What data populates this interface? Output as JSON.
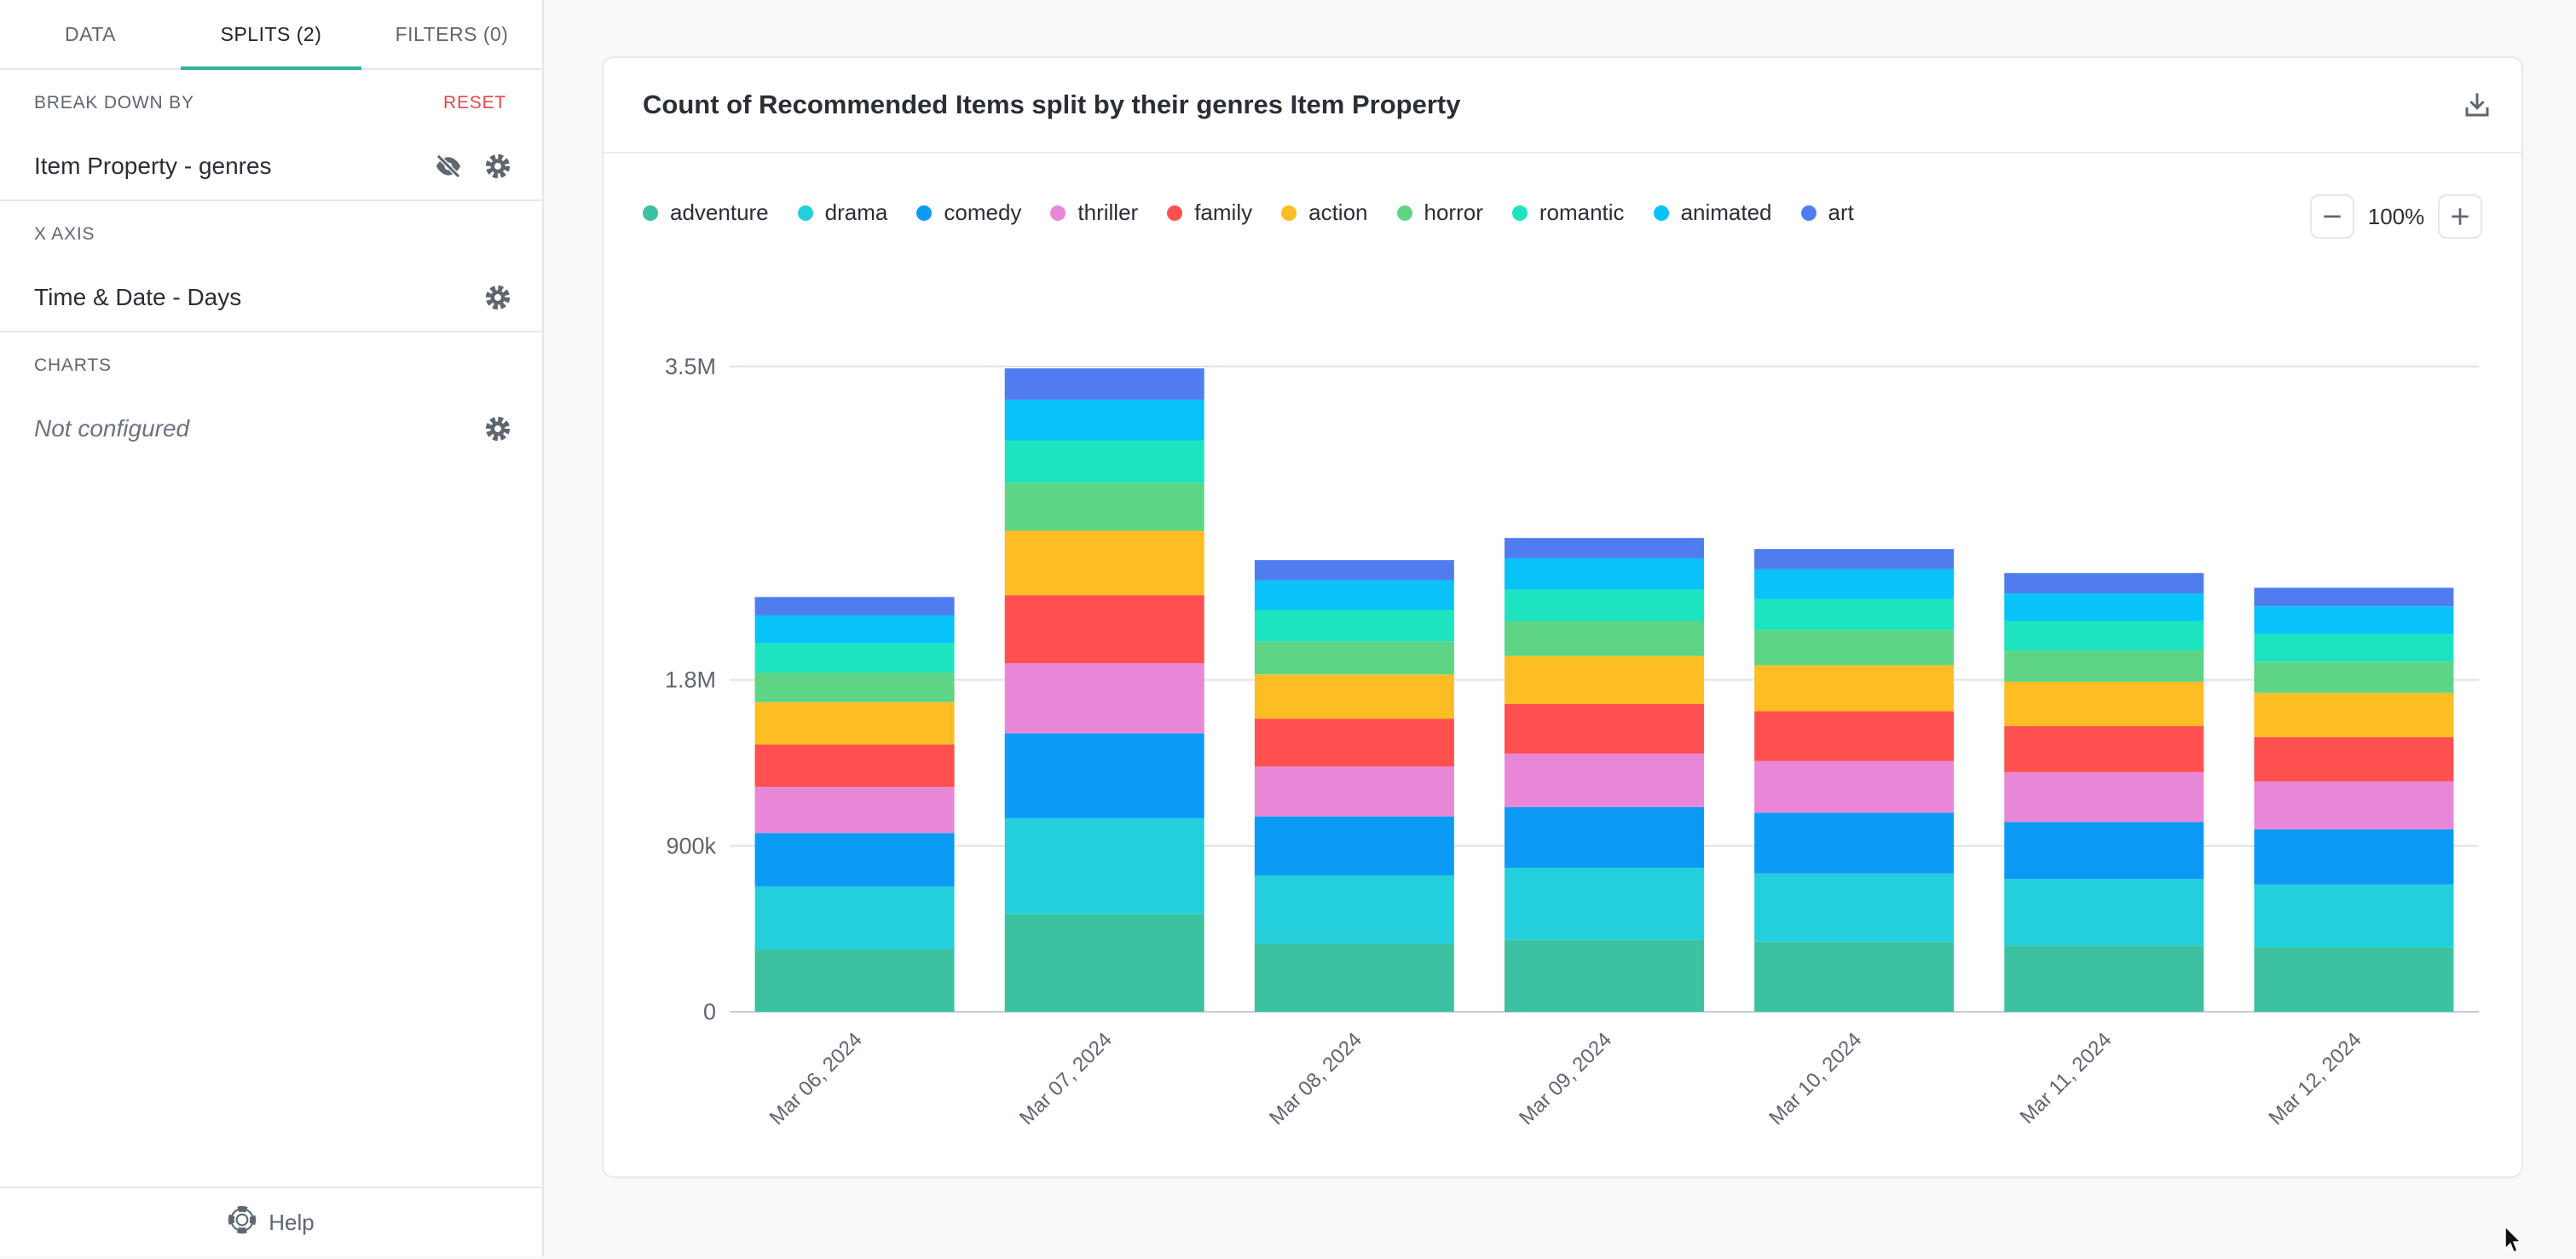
{
  "sidebar": {
    "tabs": [
      {
        "label": "DATA"
      },
      {
        "label": "SPLITS (2)"
      },
      {
        "label": "FILTERS (0)"
      }
    ],
    "break_down": {
      "title": "BREAK DOWN BY",
      "reset": "RESET",
      "value": "Item Property - genres"
    },
    "x_axis": {
      "title": "X AXIS",
      "value": "Time & Date - Days"
    },
    "charts": {
      "title": "CHARTS",
      "value": "Not configured"
    },
    "help": "Help"
  },
  "card": {
    "title": "Count of Recommended Items split by their genres Item Property",
    "zoom": "100%"
  },
  "colors": {
    "accent": "#2bb3a0",
    "reset": "#e5484d",
    "icon": "#5f6670"
  },
  "icons": [
    "eye-off-icon",
    "gear-icon",
    "download-icon",
    "minus-icon",
    "plus-icon",
    "lifebuoy-icon"
  ],
  "chart_data": {
    "type": "bar",
    "stacked": true,
    "title": "",
    "xlabel": "",
    "ylabel": "",
    "ylim": [
      0,
      3500000
    ],
    "y_ticks": [
      0,
      900000,
      1800000,
      3500000
    ],
    "y_tick_labels": [
      "0",
      "900k",
      "1.8M",
      "3.5M"
    ],
    "grid": true,
    "legend": "top-left",
    "categories": [
      "Mar 06, 2024",
      "Mar 07, 2024",
      "Mar 08, 2024",
      "Mar 09, 2024",
      "Mar 10, 2024",
      "Mar 11, 2024",
      "Mar 12, 2024"
    ],
    "series": [
      {
        "name": "adventure",
        "color": "#3cc2a0",
        "values": [
          340000,
          530000,
          370000,
          390000,
          380000,
          360000,
          350000
        ]
      },
      {
        "name": "drama",
        "color": "#24cfdc",
        "values": [
          340000,
          520000,
          370000,
          390000,
          370000,
          360000,
          340000
        ]
      },
      {
        "name": "comedy",
        "color": "#0b9bf4",
        "values": [
          290000,
          460000,
          320000,
          330000,
          330000,
          310000,
          300000
        ]
      },
      {
        "name": "thriller",
        "color": "#e887d8",
        "values": [
          250000,
          380000,
          270000,
          290000,
          280000,
          270000,
          260000
        ]
      },
      {
        "name": "family",
        "color": "#ff5050",
        "values": [
          230000,
          370000,
          260000,
          270000,
          270000,
          250000,
          240000
        ]
      },
      {
        "name": "action",
        "color": "#ffbd24",
        "values": [
          230000,
          350000,
          240000,
          260000,
          250000,
          240000,
          240000
        ]
      },
      {
        "name": "horror",
        "color": "#5dd585",
        "values": [
          160000,
          260000,
          180000,
          190000,
          190000,
          170000,
          170000
        ]
      },
      {
        "name": "romantic",
        "color": "#1ee3c1",
        "values": [
          160000,
          230000,
          170000,
          170000,
          170000,
          160000,
          150000
        ]
      },
      {
        "name": "animated",
        "color": "#08c2f8",
        "values": [
          150000,
          220000,
          160000,
          170000,
          160000,
          150000,
          150000
        ]
      },
      {
        "name": "art",
        "color": "#4f7df0",
        "values": [
          100000,
          170000,
          110000,
          110000,
          110000,
          110000,
          100000
        ]
      }
    ]
  }
}
